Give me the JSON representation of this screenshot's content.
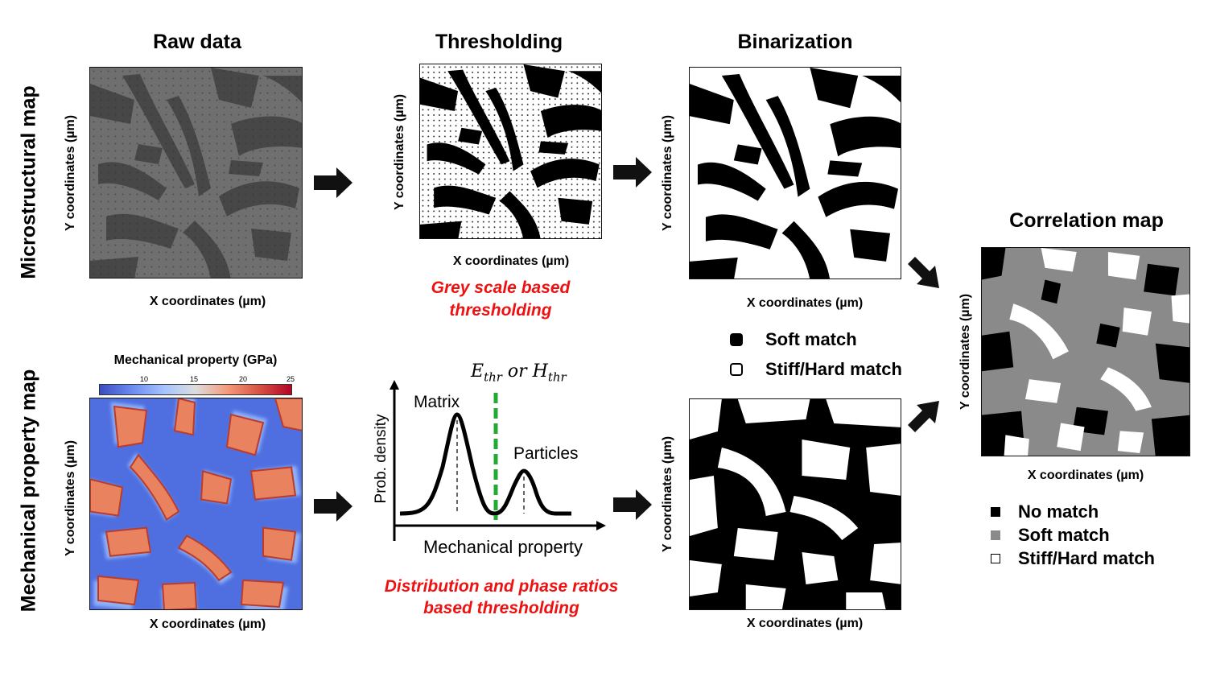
{
  "columns": {
    "raw": "Raw data",
    "threshold": "Thresholding",
    "binar": "Binarization",
    "corr": "Correlation map"
  },
  "rows": {
    "micro": "Microstructural map",
    "mech": "Mechanical property map"
  },
  "axes": {
    "x": "X coordinates (µm)",
    "y": "Y coordinates (µm)"
  },
  "notes": {
    "grey_line1": "Grey scale based",
    "grey_line2": "thresholding",
    "dist_line1": "Distribution and phase ratios",
    "dist_line2": "based thresholding"
  },
  "colorbar": {
    "title": "Mechanical property (GPa)",
    "ticks": [
      "10",
      "15",
      "20",
      "25"
    ],
    "colors": [
      "#3b4cc0",
      "#a5c3fe",
      "#dddddd",
      "#f49a7b",
      "#b40426"
    ]
  },
  "distribution": {
    "threshold_label": "E_thr or H_thr",
    "ylabel": "Prob. density",
    "xlabel": "Mechanical property",
    "peak1": "Matrix",
    "peak2": "Particles",
    "threshold_color": "#22aa33"
  },
  "binar_legend": {
    "soft": "Soft match",
    "stiff": "Stiff/Hard match"
  },
  "corr_legend": {
    "none": "No match",
    "soft": "Soft match",
    "stiff": "Stiff/Hard match"
  }
}
